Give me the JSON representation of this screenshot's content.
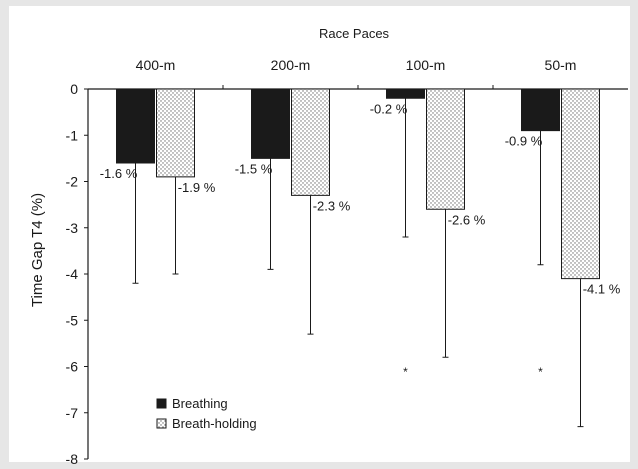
{
  "chart_data": {
    "type": "bar",
    "title": "Race Paces",
    "xlabel": "",
    "ylabel": "Time Gap T4 (%)",
    "categories": [
      "400-m",
      "200-m",
      "100-m",
      "50-m"
    ],
    "ylim": [
      -8,
      0
    ],
    "yticks": [
      0,
      -1,
      -2,
      -3,
      -4,
      -5,
      -6,
      -7,
      -8
    ],
    "x_axis_position": "top",
    "grid": false,
    "legend_position": "bottom-left",
    "series": [
      {
        "name": "Breathing",
        "pattern": "solid",
        "color": "#1a1a1a",
        "values": [
          -1.6,
          -1.5,
          -0.2,
          -0.9
        ],
        "labels": [
          "-1.6 %",
          "-1.5 %",
          "-0.2 %",
          "-0.9 %"
        ],
        "error_low": [
          -4.2,
          -3.9,
          -3.2,
          -3.8
        ],
        "significance": [
          "",
          "",
          "*",
          "*"
        ]
      },
      {
        "name": "Breath-holding",
        "pattern": "dotted",
        "color": "#ffffff",
        "values": [
          -1.9,
          -2.3,
          -2.6,
          -4.1
        ],
        "labels": [
          "-1.9 %",
          "-2.3 %",
          "-2.6 %",
          "-4.1 %"
        ],
        "error_low": [
          -4.0,
          -5.3,
          -5.8,
          -7.3
        ],
        "significance": [
          "",
          "",
          "",
          ""
        ]
      }
    ]
  }
}
